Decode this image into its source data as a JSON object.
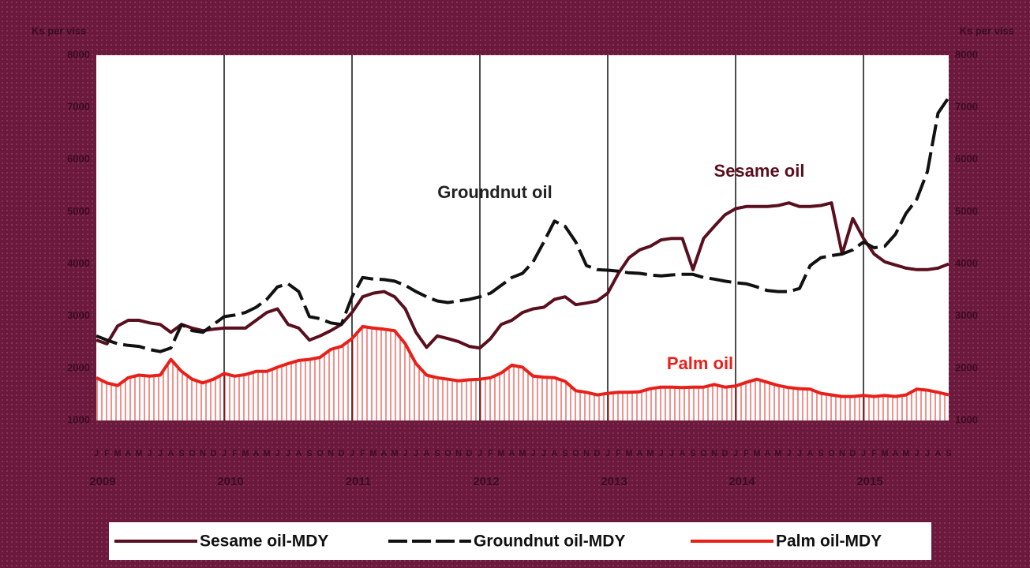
{
  "chart_data": {
    "type": "line",
    "y_label": "Ks per viss",
    "y2_label": "Ks per viss",
    "categories": [
      "J",
      "F",
      "M",
      "A",
      "M",
      "J",
      "J",
      "A",
      "S",
      "O",
      "N",
      "D",
      "J",
      "F",
      "M",
      "A",
      "M",
      "J",
      "J",
      "A",
      "S",
      "O",
      "N",
      "D",
      "J",
      "F",
      "M",
      "A",
      "M",
      "J",
      "J",
      "A",
      "S",
      "O",
      "N",
      "D",
      "J",
      "F",
      "M",
      "A",
      "M",
      "J",
      "J",
      "A",
      "S",
      "O",
      "N",
      "D",
      "J",
      "F",
      "M",
      "A",
      "M",
      "J",
      "J",
      "A",
      "S",
      "O",
      "N",
      "D",
      "J",
      "F",
      "M",
      "A",
      "M",
      "J",
      "J",
      "A",
      "S",
      "O",
      "N",
      "D",
      "J",
      "F",
      "M",
      "A",
      "M",
      "J",
      "J",
      "A",
      "S"
    ],
    "years": [
      "2009",
      "2010",
      "2011",
      "2012",
      "2013",
      "2014",
      "2015"
    ],
    "ylim": [
      1000,
      8000
    ],
    "yticks": [
      1000,
      2000,
      3000,
      4000,
      5000,
      6000,
      7000,
      8000
    ],
    "y2lim": [
      1000,
      8000
    ],
    "y2ticks": [
      1000,
      2000,
      3000,
      4000,
      5000,
      6000,
      7000,
      8000
    ],
    "annotations": [
      {
        "text": "Groundnut oil",
        "color": "#222222"
      },
      {
        "text": "Sesame oil",
        "color": "#5a0f1e"
      },
      {
        "text": "Palm oil",
        "color": "#e8201a"
      }
    ],
    "series": [
      {
        "name": "Sesame oil-MDY",
        "color": "#5a0f1e",
        "values": [
          2540,
          2470,
          2810,
          2920,
          2920,
          2870,
          2840,
          2690,
          2840,
          2770,
          2720,
          2750,
          2770,
          2770,
          2770,
          2920,
          3070,
          3140,
          2840,
          2770,
          2540,
          2620,
          2720,
          2840,
          3070,
          3370,
          3440,
          3470,
          3370,
          3140,
          2690,
          2400,
          2620,
          2570,
          2510,
          2420,
          2390,
          2570,
          2840,
          2920,
          3070,
          3140,
          3170,
          3320,
          3370,
          3220,
          3250,
          3290,
          3440,
          3820,
          4120,
          4270,
          4340,
          4460,
          4490,
          4490,
          3890,
          4490,
          4720,
          4940,
          5060,
          5100,
          5100,
          5100,
          5120,
          5170,
          5100,
          5100,
          5120,
          5170,
          4190,
          4870,
          4490,
          4190,
          4040,
          3980,
          3920,
          3890,
          3890,
          3920,
          4000
        ]
      },
      {
        "name": "Groundnut oil-MDY",
        "color": "#111111",
        "dashed": true,
        "values": [
          2620,
          2540,
          2470,
          2440,
          2420,
          2360,
          2320,
          2390,
          2840,
          2720,
          2690,
          2840,
          2990,
          3020,
          3070,
          3170,
          3320,
          3560,
          3620,
          3470,
          2990,
          2950,
          2870,
          2840,
          3370,
          3740,
          3710,
          3700,
          3670,
          3590,
          3470,
          3370,
          3290,
          3260,
          3290,
          3320,
          3370,
          3440,
          3590,
          3740,
          3820,
          4040,
          4420,
          4820,
          4720,
          4420,
          3970,
          3890,
          3880,
          3860,
          3830,
          3820,
          3790,
          3770,
          3790,
          3800,
          3800,
          3740,
          3710,
          3670,
          3640,
          3620,
          3560,
          3490,
          3470,
          3470,
          3530,
          3970,
          4120,
          4160,
          4190,
          4270,
          4420,
          4310,
          4340,
          4570,
          4970,
          5240,
          5770,
          6890,
          7190
        ]
      },
      {
        "name": "Palm oil-MDY",
        "color": "#e8201a",
        "values": [
          1820,
          1720,
          1670,
          1820,
          1870,
          1850,
          1870,
          2170,
          1940,
          1790,
          1720,
          1790,
          1900,
          1850,
          1880,
          1940,
          1940,
          2020,
          2090,
          2150,
          2170,
          2210,
          2360,
          2420,
          2570,
          2800,
          2770,
          2750,
          2720,
          2470,
          2090,
          1870,
          1820,
          1790,
          1760,
          1780,
          1790,
          1820,
          1910,
          2060,
          2020,
          1850,
          1830,
          1820,
          1750,
          1570,
          1540,
          1490,
          1520,
          1540,
          1540,
          1550,
          1610,
          1640,
          1640,
          1630,
          1640,
          1640,
          1690,
          1640,
          1660,
          1730,
          1790,
          1730,
          1670,
          1630,
          1610,
          1600,
          1520,
          1490,
          1460,
          1460,
          1480,
          1460,
          1480,
          1460,
          1490,
          1600,
          1580,
          1540,
          1490
        ]
      }
    ]
  }
}
